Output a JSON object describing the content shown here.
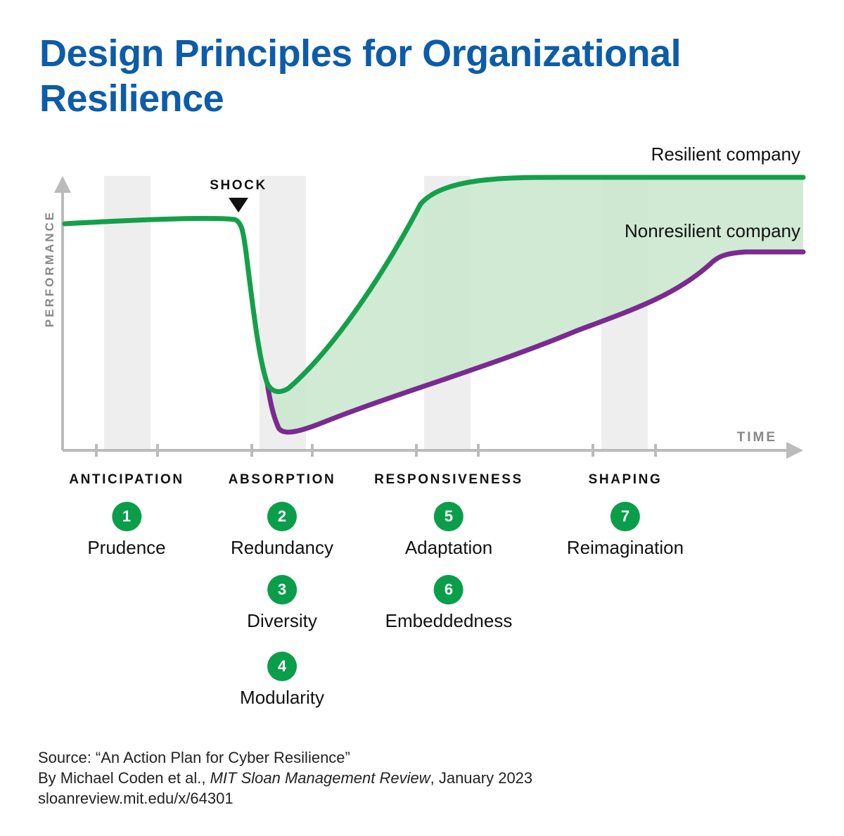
{
  "title": "Design Principles for Organizational Resilience",
  "chart": {
    "y_axis_label": "PERFORMANCE",
    "x_axis_label": "TIME",
    "shock_label": "SHOCK",
    "series": [
      {
        "name": "Resilient company",
        "color": "#14a04a"
      },
      {
        "name": "Nonresilient company",
        "color": "#7a2a90"
      }
    ],
    "band_fill": "#c9e6cd",
    "shade_color": "#eeeeee"
  },
  "phases": [
    {
      "label": "ANTICIPATION",
      "principles": [
        {
          "number": "1",
          "name": "Prudence"
        }
      ]
    },
    {
      "label": "ABSORPTION",
      "principles": [
        {
          "number": "2",
          "name": "Redundancy"
        },
        {
          "number": "3",
          "name": "Diversity"
        },
        {
          "number": "4",
          "name": "Modularity"
        }
      ]
    },
    {
      "label": "RESPONSIVENESS",
      "principles": [
        {
          "number": "5",
          "name": "Adaptation"
        },
        {
          "number": "6",
          "name": "Embeddedness"
        }
      ]
    },
    {
      "label": "SHAPING",
      "principles": [
        {
          "number": "7",
          "name": "Reimagination"
        }
      ]
    }
  ],
  "source": {
    "line1": "Source: “An Action Plan for Cyber Resilience”",
    "line2_prefix": "By Michael Coden et al., ",
    "line2_publication": "MIT Sloan Management Review",
    "line2_suffix": ", January 2023",
    "line3": "sloanreview.mit.edu/x/64301"
  },
  "colors": {
    "title": "#0d5ca8",
    "badge": "#0a9e4a",
    "axis": "#bbbbbb"
  }
}
